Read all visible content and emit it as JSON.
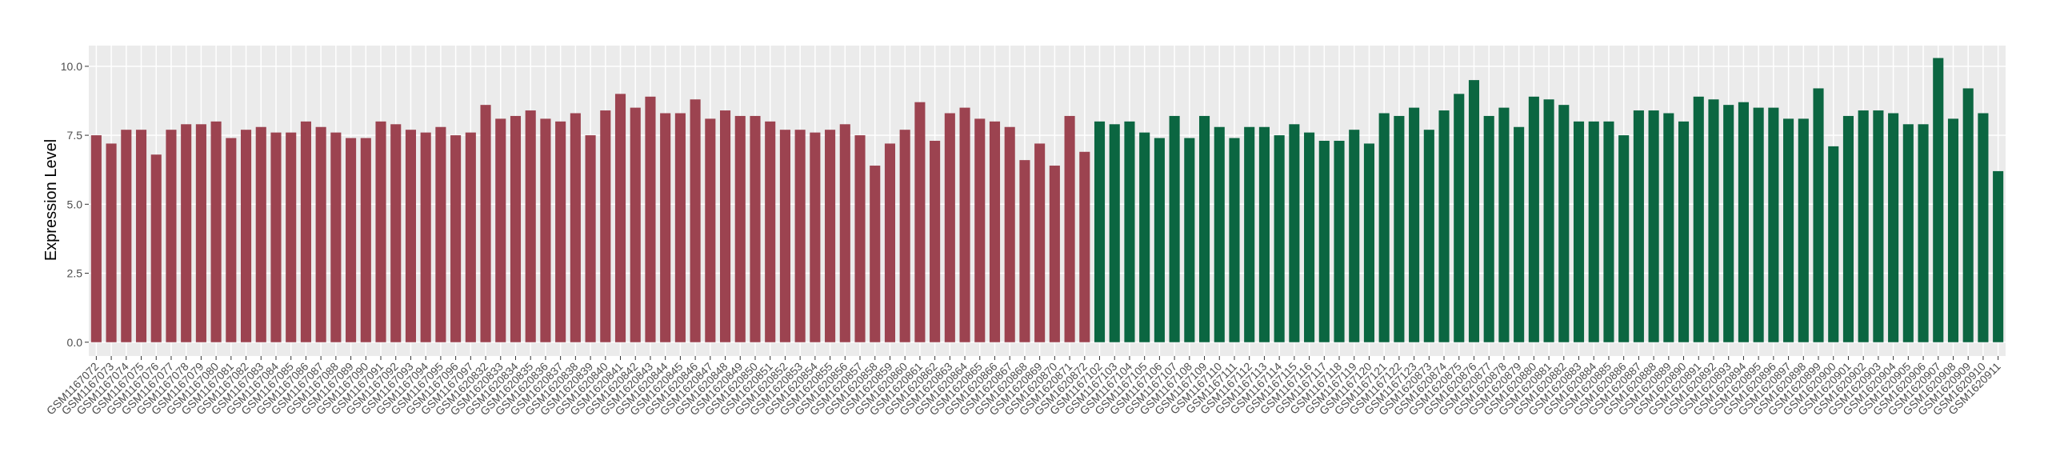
{
  "chart_data": {
    "type": "bar",
    "y_label": "Expression Level",
    "ylim": [
      -0.5,
      10.75
    ],
    "yticks": [
      {
        "value": 0,
        "label": "0.0"
      },
      {
        "value": 2.5,
        "label": "2.5"
      },
      {
        "value": 5,
        "label": "5.0"
      },
      {
        "value": 7.5,
        "label": "7.5"
      },
      {
        "value": 10,
        "label": "10.0"
      }
    ],
    "grid": true,
    "categories": [
      "GSM1167072",
      "GSM1167073",
      "GSM1167074",
      "GSM1167075",
      "GSM1167076",
      "GSM1167077",
      "GSM1167078",
      "GSM1167079",
      "GSM1167080",
      "GSM1167081",
      "GSM1167082",
      "GSM1167083",
      "GSM1167084",
      "GSM1167085",
      "GSM1167086",
      "GSM1167087",
      "GSM1167088",
      "GSM1167089",
      "GSM1167090",
      "GSM1167091",
      "GSM1167092",
      "GSM1167093",
      "GSM1167094",
      "GSM1167095",
      "GSM1167096",
      "GSM1167097",
      "GSM1620832",
      "GSM1620833",
      "GSM1620834",
      "GSM1620835",
      "GSM1620836",
      "GSM1620837",
      "GSM1620838",
      "GSM1620839",
      "GSM1620840",
      "GSM1620841",
      "GSM1620842",
      "GSM1620843",
      "GSM1620844",
      "GSM1620845",
      "GSM1620846",
      "GSM1620847",
      "GSM1620848",
      "GSM1620849",
      "GSM1620850",
      "GSM1620851",
      "GSM1620852",
      "GSM1620853",
      "GSM1620854",
      "GSM1620855",
      "GSM1620856",
      "GSM1620857",
      "GSM1620858",
      "GSM1620859",
      "GSM1620860",
      "GSM1620861",
      "GSM1620862",
      "GSM1620863",
      "GSM1620864",
      "GSM1620865",
      "GSM1620866",
      "GSM1620867",
      "GSM1620868",
      "GSM1620869",
      "GSM1620870",
      "GSM1620871",
      "GSM1620872",
      "GSM1167102",
      "GSM1167103",
      "GSM1167104",
      "GSM1167105",
      "GSM1167106",
      "GSM1167107",
      "GSM1167108",
      "GSM1167109",
      "GSM1167110",
      "GSM1167111",
      "GSM1167112",
      "GSM1167113",
      "GSM1167114",
      "GSM1167115",
      "GSM1167116",
      "GSM1167117",
      "GSM1167118",
      "GSM1167119",
      "GSM1167120",
      "GSM1167121",
      "GSM1167122",
      "GSM1167123",
      "GSM1620873",
      "GSM1620874",
      "GSM1620875",
      "GSM1620876",
      "GSM1620877",
      "GSM1620878",
      "GSM1620879",
      "GSM1620880",
      "GSM1620881",
      "GSM1620882",
      "GSM1620883",
      "GSM1620884",
      "GSM1620885",
      "GSM1620886",
      "GSM1620887",
      "GSM1620888",
      "GSM1620889",
      "GSM1620890",
      "GSM1620891",
      "GSM1620892",
      "GSM1620893",
      "GSM1620894",
      "GSM1620895",
      "GSM1620896",
      "GSM1620897",
      "GSM1620898",
      "GSM1620899",
      "GSM1620900",
      "GSM1620901",
      "GSM1620902",
      "GSM1620903",
      "GSM1620904",
      "GSM1620905",
      "GSM1620906",
      "GSM1620907",
      "GSM1620908",
      "GSM1620909",
      "GSM1620910",
      "GSM1620911"
    ],
    "series": [
      {
        "color": "#9c4350",
        "values": [
          7.5,
          7.2,
          7.7,
          7.7,
          6.8,
          7.7,
          7.9,
          7.9,
          8.0,
          7.4,
          7.7,
          7.8,
          7.6,
          7.6,
          8.0,
          7.8,
          7.6,
          7.4,
          7.4,
          8.0,
          7.9,
          7.7,
          7.6,
          7.8,
          7.5,
          7.6,
          8.6,
          8.1,
          8.2,
          8.4,
          8.1,
          8.0,
          8.3,
          7.5,
          8.4,
          9.0,
          8.5,
          8.9,
          8.3,
          8.3,
          8.8,
          8.1,
          8.4,
          8.2,
          8.2,
          8.0,
          7.7,
          7.7,
          7.6,
          7.7,
          7.9,
          7.5,
          6.4,
          7.2,
          7.7,
          8.7,
          7.3,
          8.3,
          8.5,
          8.1,
          8.0,
          7.8,
          6.6,
          7.2,
          6.4,
          8.2,
          6.9,
          null,
          null,
          null,
          null,
          null,
          null,
          null,
          null,
          null,
          null,
          null,
          null,
          null,
          null,
          null,
          null,
          null,
          null,
          null,
          null,
          null,
          null,
          null,
          null,
          null,
          null,
          null,
          null,
          null,
          null,
          null,
          null,
          null,
          null,
          null,
          null,
          null,
          null,
          null,
          null,
          null,
          null,
          null,
          null,
          null,
          null,
          null,
          null,
          null,
          null,
          null,
          null,
          null,
          null,
          null,
          null,
          null,
          null,
          null,
          null,
          null
        ]
      },
      {
        "color": "#0b6641",
        "values": [
          null,
          null,
          null,
          null,
          null,
          null,
          null,
          null,
          null,
          null,
          null,
          null,
          null,
          null,
          null,
          null,
          null,
          null,
          null,
          null,
          null,
          null,
          null,
          null,
          null,
          null,
          null,
          null,
          null,
          null,
          null,
          null,
          null,
          null,
          null,
          null,
          null,
          null,
          null,
          null,
          null,
          null,
          null,
          null,
          null,
          null,
          null,
          null,
          null,
          null,
          null,
          null,
          null,
          null,
          null,
          null,
          null,
          null,
          null,
          null,
          null,
          null,
          null,
          null,
          null,
          null,
          null,
          8.0,
          7.9,
          8.0,
          7.6,
          7.4,
          8.2,
          7.4,
          8.2,
          7.8,
          7.4,
          7.8,
          7.8,
          7.5,
          7.9,
          7.6,
          7.3,
          7.3,
          7.7,
          7.2,
          8.3,
          8.2,
          8.5,
          7.7,
          8.4,
          9.0,
          9.5,
          8.2,
          8.5,
          7.8,
          8.9,
          8.8,
          8.6,
          8.0,
          8.0,
          8.0,
          7.5,
          8.4,
          8.4,
          8.3,
          8.0,
          8.9,
          8.8,
          8.6,
          8.7,
          8.5,
          8.5,
          8.1,
          8.1,
          9.2,
          7.1,
          8.2,
          8.4,
          8.4,
          8.3,
          7.9,
          7.9,
          10.3,
          8.1,
          9.2,
          8.3,
          6.2
        ]
      }
    ]
  }
}
